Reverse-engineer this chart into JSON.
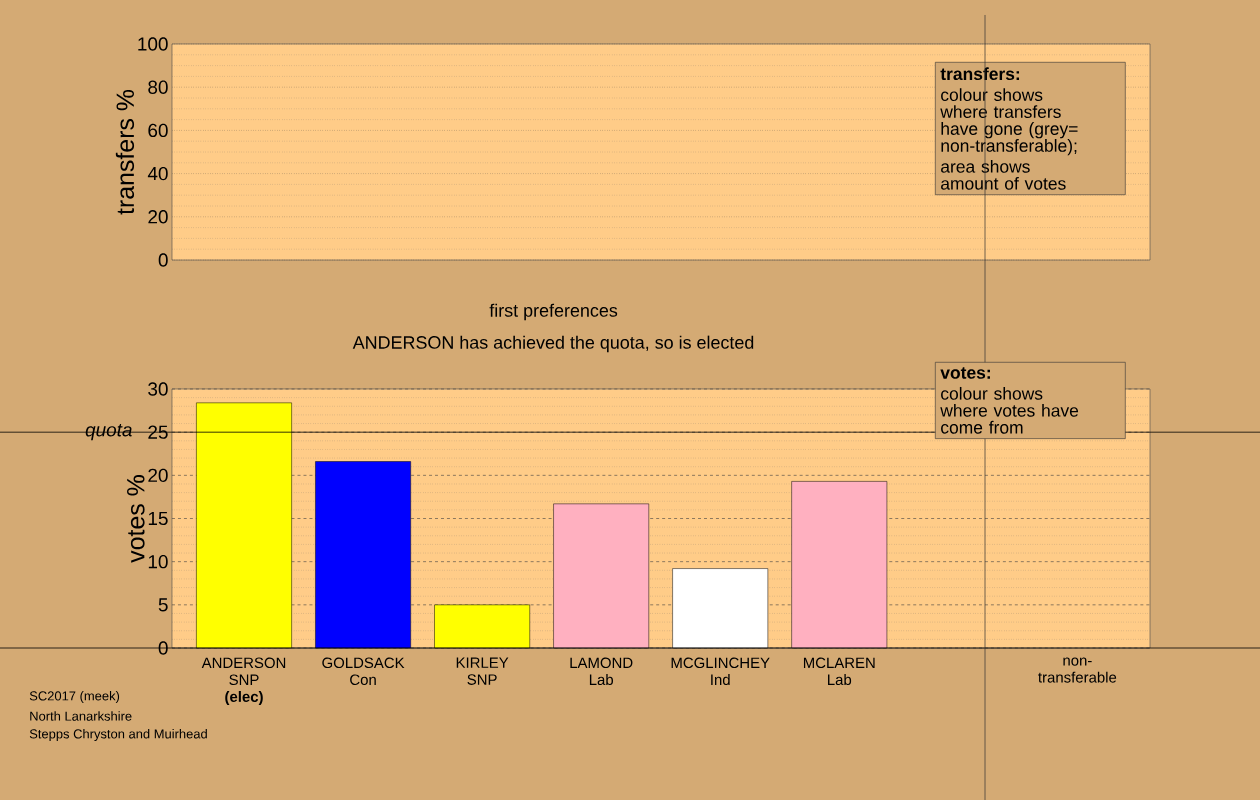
{
  "chart_data": [
    {
      "type": "bar",
      "ylabel": "transfers %",
      "categories": [
        null,
        null,
        null,
        null,
        null,
        null,
        null,
        null
      ],
      "values": [
        null,
        null,
        null,
        null,
        null,
        null,
        null,
        null
      ],
      "ylim": [
        0,
        100
      ],
      "yticks": [
        0,
        20,
        40,
        60,
        80,
        100
      ],
      "grid": "y",
      "annotations": [
        "transfers:",
        "colour shows where transfers have gone (grey= non-transferable);",
        "area shows amount of votes"
      ]
    },
    {
      "type": "bar",
      "title": "first preferences",
      "subtitle": "ANDERSON has achieved the quota, so is elected",
      "ylabel": "votes %",
      "categories": [
        "ANDERSON\nSNP\n**(elec)**",
        "GOLDSACK\nCon",
        "KIRLEY\nSNP",
        "LAMOND\nLab",
        "MCGLINCHEY\nInd",
        "MCLAREN\nLab",
        null,
        "non-\ntransferable"
      ],
      "values": [
        28.4,
        21.6,
        5.0,
        16.7,
        9.2,
        19.3,
        null,
        null
      ],
      "colors": [
        "#ffff00",
        "#0000ff",
        "#ffff00",
        "#ffb0c0",
        "#ffffff",
        "#ffb0c0",
        null,
        null
      ],
      "ylim": [
        0,
        30
      ],
      "yticks": [
        0,
        5,
        10,
        15,
        20,
        25,
        30
      ],
      "grid": "y",
      "ref_lines": [
        {
          "axis": "y",
          "value": 25,
          "label": "quota"
        }
      ],
      "annotations": [
        "votes:",
        "colour shows where votes have come from",
        "SC2017 (meek)",
        "North Lanarkshire",
        "Stepps Chryston and Muirhead"
      ]
    }
  ]
}
